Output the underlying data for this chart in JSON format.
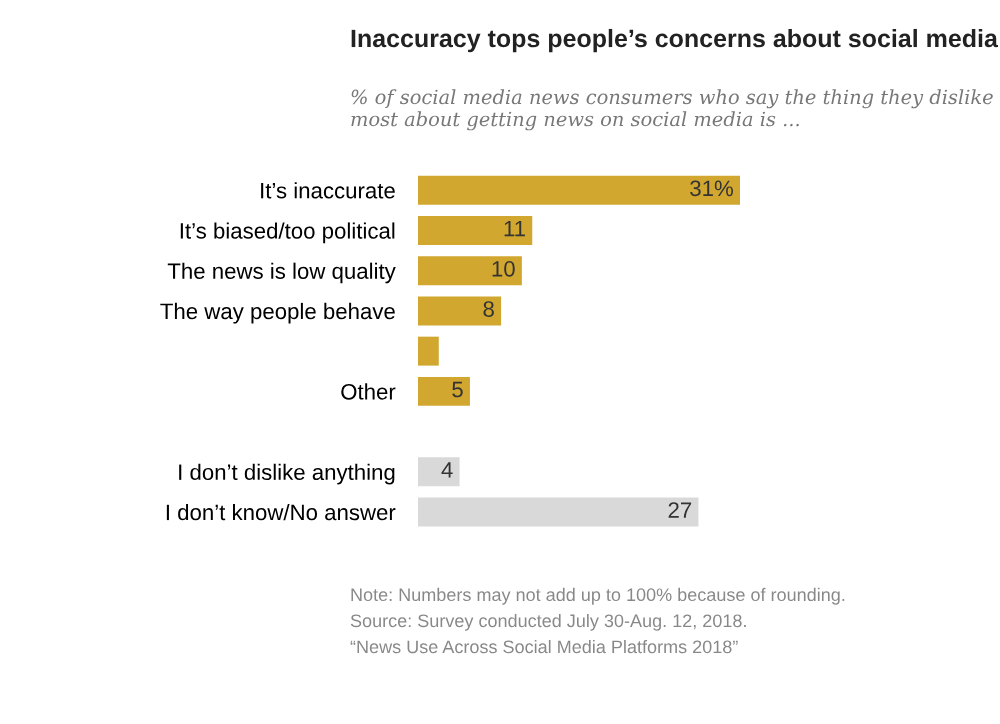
{
  "chart_data": {
    "type": "bar",
    "orientation": "horizontal",
    "title": "Inaccuracy tops people’s concerns about social media",
    "subtitle": "% of social media news consumers who say the thing they dislike most about getting news on social media is ...",
    "categories": [
      "It’s inaccurate",
      "It’s biased/too political",
      "The news is low quality",
      "The way people behave",
      null,
      "Other",
      null,
      "I don’t dislike anything",
      "I don’t know/No answer"
    ],
    "values": [
      31,
      11,
      10,
      8,
      2,
      5,
      null,
      4,
      27
    ],
    "value_labels": [
      "31%",
      "11",
      "10",
      "8",
      null,
      "5",
      null,
      "4",
      "27"
    ],
    "colors": [
      "#d1a730",
      "#d1a730",
      "#d1a730",
      "#d1a730",
      "#d1a730",
      "#d1a730",
      "#d1a730",
      "#d9d9d9",
      "#d9d9d9"
    ],
    "annotations": [
      "Note: Numbers may not add up to 100% because of rounding.",
      "Source: Survey conducted July 30-Aug. 12, 2018.",
      "“News Use Across Social Media Platforms 2018”"
    ],
    "grid": false,
    "legend": false
  }
}
